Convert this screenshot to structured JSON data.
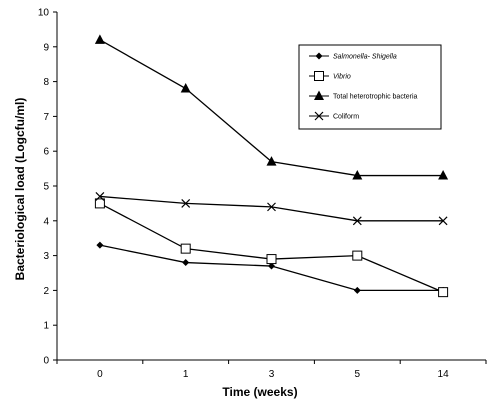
{
  "chart_data": {
    "type": "line",
    "title": "",
    "xlabel": "Time (weeks)",
    "ylabel": "Bacteriological load (Logcfu/ml)",
    "categories": [
      "0",
      "1",
      "3",
      "5",
      "14"
    ],
    "ylim": [
      0,
      10
    ],
    "yticks": [
      0,
      1,
      2,
      3,
      4,
      5,
      6,
      7,
      8,
      9,
      10
    ],
    "grid": false,
    "legend_position": "top-right",
    "series": [
      {
        "name": "Salmonella- Shigella",
        "marker": "diamond",
        "italic": true,
        "values": [
          3.3,
          2.8,
          2.7,
          2.0,
          2.0
        ]
      },
      {
        "name": "Vibrio",
        "marker": "square-open",
        "italic": true,
        "values": [
          4.5,
          3.2,
          2.9,
          3.0,
          1.95
        ]
      },
      {
        "name": "Total heterotrophic bacteria",
        "marker": "triangle",
        "italic": false,
        "values": [
          9.2,
          7.8,
          5.7,
          5.3,
          5.3
        ]
      },
      {
        "name": "Coliform",
        "marker": "star",
        "italic": false,
        "values": [
          4.7,
          4.5,
          4.4,
          4.0,
          4.0
        ]
      }
    ]
  },
  "colors": {
    "line": "#000000",
    "background": "#ffffff"
  }
}
